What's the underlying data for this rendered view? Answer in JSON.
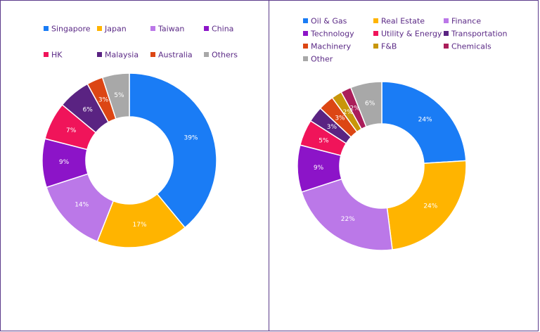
{
  "chart_data": [
    {
      "type": "pie",
      "title": "",
      "donut": true,
      "legend_position": "top",
      "categories": [
        "Singapore",
        "Japan",
        "Taiwan",
        "China",
        "HK",
        "Malaysia",
        "Australia",
        "Others"
      ],
      "values": [
        39,
        17,
        14,
        9,
        7,
        6,
        3,
        5
      ],
      "labels": [
        "39%",
        "17%",
        "14%",
        "9%",
        "7%",
        "6%",
        "3%",
        "5%"
      ],
      "colors": [
        "#1a7cf5",
        "#ffb400",
        "#bb78e8",
        "#8c14c8",
        "#f0145a",
        "#5a2382",
        "#dc4614",
        "#a8a8a8"
      ]
    },
    {
      "type": "pie",
      "title": "",
      "donut": true,
      "legend_position": "top",
      "categories": [
        "Oil & Gas",
        "Real Estate",
        "Finance",
        "Technology",
        "Utility & Energy",
        "Transportation",
        "Machinery",
        "F&B",
        "Chemicals",
        "Other"
      ],
      "values": [
        24,
        24,
        22,
        9,
        5,
        3,
        3,
        2,
        2,
        6
      ],
      "labels": [
        "24%",
        "24%",
        "22%",
        "9%",
        "5%",
        "3%",
        "3%",
        "2%",
        "2%",
        "6%"
      ],
      "colors": [
        "#1a7cf5",
        "#ffb400",
        "#bb78e8",
        "#8c14c8",
        "#f0145a",
        "#5a2382",
        "#dc4614",
        "#c8960a",
        "#aa1e5a",
        "#a8a8a8"
      ]
    }
  ]
}
